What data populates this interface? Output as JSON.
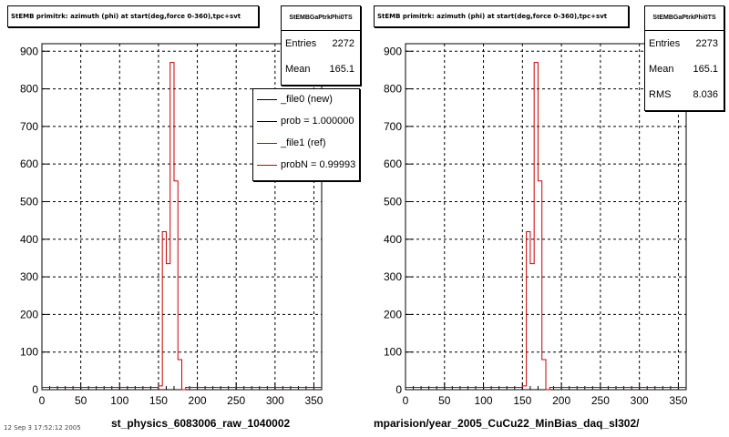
{
  "panels": [
    {
      "title": "StEMB primitrk: azimuth (phi) at start(deg,force 0-360),tpc+svt",
      "stats": {
        "name": "StEMBGaPtrkPhi0TS",
        "rows": [
          {
            "label": "Entries",
            "value": "2272"
          },
          {
            "label": "Mean",
            "value": "165.1"
          }
        ]
      },
      "legend": [
        {
          "label": "_file0 (new)",
          "color": "#000000"
        },
        {
          "label": "prob = 1.000000",
          "color": "#000000"
        },
        {
          "label": "_file1 (ref)",
          "color": "#cc0000"
        },
        {
          "label": "probN = 0.99993",
          "color": "#cc0000"
        }
      ],
      "xlabel": "st_physics_6083006_raw_1040002"
    },
    {
      "title": "StEMB primitrk: azimuth (phi) at start(deg,force 0-360),tpc+svt",
      "stats": {
        "name": "StEMBGaPtrkPhi0TS",
        "rows": [
          {
            "label": "Entries",
            "value": "2273"
          },
          {
            "label": "Mean",
            "value": "165.1"
          },
          {
            "label": "RMS",
            "value": "8.036"
          }
        ]
      },
      "xlabel": "mparision/year_2005_CuCu22_MinBias_daq_sl302/"
    }
  ],
  "footer": "12 Sep 3 17:52:12 2005",
  "chart_data": [
    {
      "type": "bar",
      "xlim": [
        0,
        360
      ],
      "ylim": [
        0,
        920
      ],
      "x_ticks": [
        0,
        50,
        100,
        150,
        200,
        250,
        300,
        350
      ],
      "y_ticks": [
        0,
        100,
        200,
        300,
        400,
        500,
        600,
        700,
        800,
        900
      ],
      "grid": true,
      "legend_position": "top-right",
      "bin_edges": [
        150,
        155,
        160,
        165,
        170,
        175,
        180,
        185
      ],
      "series": [
        {
          "name": "_file1 (ref)",
          "color": "#cc0000",
          "values": [
            10,
            420,
            335,
            870,
            555,
            80,
            0
          ]
        }
      ],
      "baseline_value": 6
    },
    {
      "type": "bar",
      "xlim": [
        0,
        360
      ],
      "ylim": [
        0,
        920
      ],
      "x_ticks": [
        0,
        50,
        100,
        150,
        200,
        250,
        300,
        350
      ],
      "y_ticks": [
        0,
        100,
        200,
        300,
        400,
        500,
        600,
        700,
        800,
        900
      ],
      "grid": true,
      "bin_edges": [
        150,
        155,
        160,
        165,
        170,
        175,
        180,
        185
      ],
      "series": [
        {
          "name": "",
          "color": "#cc0000",
          "values": [
            10,
            420,
            335,
            870,
            555,
            80,
            0
          ]
        }
      ],
      "baseline_value": 6
    }
  ]
}
